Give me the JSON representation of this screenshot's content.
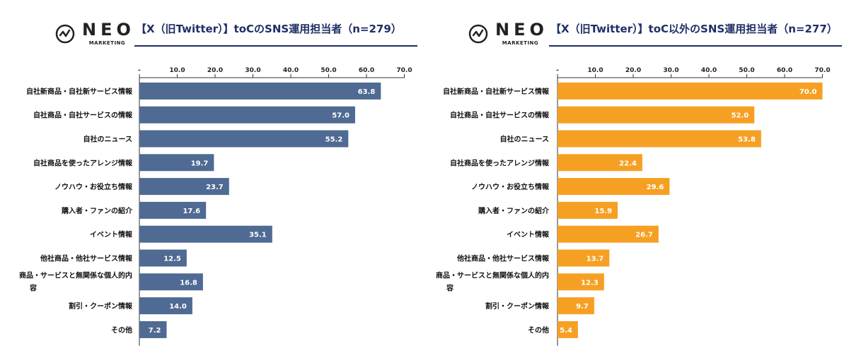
{
  "logo": {
    "word": "NEO",
    "sub": "MARKETING"
  },
  "colors": {
    "left_bar": "#4f6a93",
    "right_bar": "#f6a023",
    "title": "#1f2f66",
    "axis": "#333333"
  },
  "chart_data": [
    {
      "type": "bar",
      "orientation": "horizontal",
      "title": "【X（旧Twitter）】toCのSNS運用担当者（n=279）",
      "xlim": [
        0,
        70
      ],
      "ticks": [
        "-",
        "10.0",
        "20.0",
        "30.0",
        "40.0",
        "50.0",
        "60.0",
        "70.0"
      ],
      "categories": [
        [
          "自社新商品・自社新サービス情報"
        ],
        [
          "自社商品・自社サービスの情報"
        ],
        [
          "自社のニュース"
        ],
        [
          "自社商品を使ったアレンジ情報"
        ],
        [
          "ノウハウ・お役立ち情報"
        ],
        [
          "購入者・ファンの紹介"
        ],
        [
          "イベント情報"
        ],
        [
          "他社商品・他社サービス情報"
        ],
        [
          "商品・サービスと無関係な個人的内",
          "容"
        ],
        [
          "割引・クーポン情報"
        ],
        [
          "その他"
        ]
      ],
      "values": [
        63.8,
        57.0,
        55.2,
        19.7,
        23.7,
        17.6,
        35.1,
        12.5,
        16.8,
        14.0,
        7.2
      ],
      "labels": [
        "63.8",
        "57.0",
        "55.2",
        "19.7",
        "23.7",
        "17.6",
        "35.1",
        "12.5",
        "16.8",
        "14.0",
        "7.2"
      ],
      "color": "#4f6a93"
    },
    {
      "type": "bar",
      "orientation": "horizontal",
      "title": "【X（旧Twitter）】toC以外のSNS運用担当者（n=277）",
      "xlim": [
        0,
        70
      ],
      "ticks": [
        "-",
        "10.0",
        "20.0",
        "30.0",
        "40.0",
        "50.0",
        "60.0",
        "70.0"
      ],
      "categories": [
        [
          "自社新商品・自社新サービス情報"
        ],
        [
          "自社商品・自社サービスの情報"
        ],
        [
          "自社のニュース"
        ],
        [
          "自社商品を使ったアレンジ情報"
        ],
        [
          "ノウハウ・お役立ち情報"
        ],
        [
          "購入者・ファンの紹介"
        ],
        [
          "イベント情報"
        ],
        [
          "他社商品・他社サービス情報"
        ],
        [
          "商品・サービスと無関係な個人的内",
          "容"
        ],
        [
          "割引・クーポン情報"
        ],
        [
          "その他"
        ]
      ],
      "values": [
        70.0,
        52.0,
        53.8,
        22.4,
        29.6,
        15.9,
        26.7,
        13.7,
        12.3,
        9.7,
        5.4
      ],
      "labels": [
        "70.0",
        "52.0",
        "53.8",
        "22.4",
        "29.6",
        "15.9",
        "26.7",
        "13.7",
        "12.3",
        "9.7",
        "5.4"
      ],
      "color": "#f6a023"
    }
  ]
}
